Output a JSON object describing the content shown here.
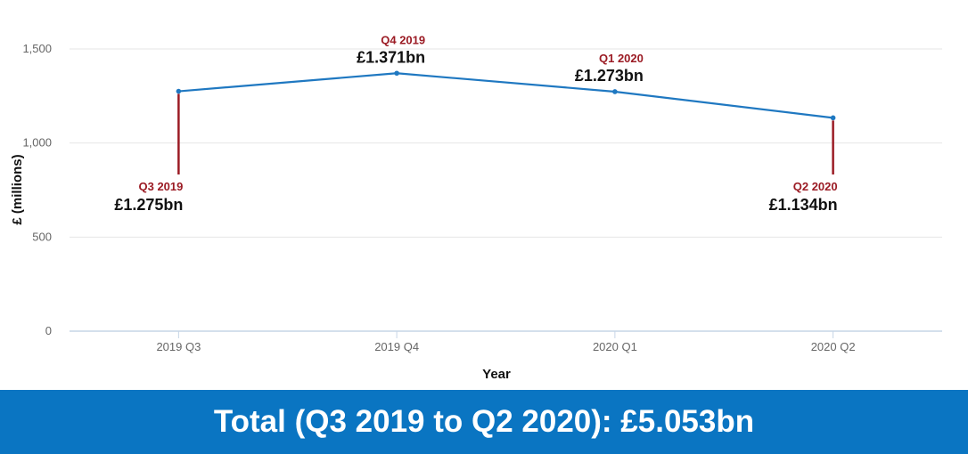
{
  "colors": {
    "line": "#1f78c1",
    "annotation": "#9b1b24",
    "footer_bg": "#0a75c2",
    "grid": "#e6e6e6",
    "baseline": "#c6d5e6"
  },
  "chart_data": {
    "type": "line",
    "categories": [
      "2019 Q3",
      "2019 Q4",
      "2020 Q1",
      "2020 Q2"
    ],
    "series": [
      {
        "values": [
          1275,
          1371,
          1273,
          1134
        ]
      }
    ],
    "xlabel": "Year",
    "ylabel": "£ (millions)",
    "ylim": [
      0,
      1500
    ],
    "yticks": [
      0,
      500,
      1000,
      1500
    ],
    "ytick_labels": [
      "0",
      "500",
      "1,000",
      "1,500"
    ],
    "grid": true,
    "legend": "none",
    "annotations": [
      {
        "category": "2019 Q3",
        "quarter": "Q3 2019",
        "value": "£1.275bn",
        "placement": "below"
      },
      {
        "category": "2019 Q4",
        "quarter": "Q4 2019",
        "value": "£1.371bn",
        "placement": "above"
      },
      {
        "category": "2020 Q1",
        "quarter": "Q1 2020",
        "value": "£1.273bn",
        "placement": "above"
      },
      {
        "category": "2020 Q2",
        "quarter": "Q2 2020",
        "value": "£1.134bn",
        "placement": "below"
      }
    ]
  },
  "footer": {
    "total_text": "Total (Q3 2019 to Q2 2020): £5.053bn"
  }
}
